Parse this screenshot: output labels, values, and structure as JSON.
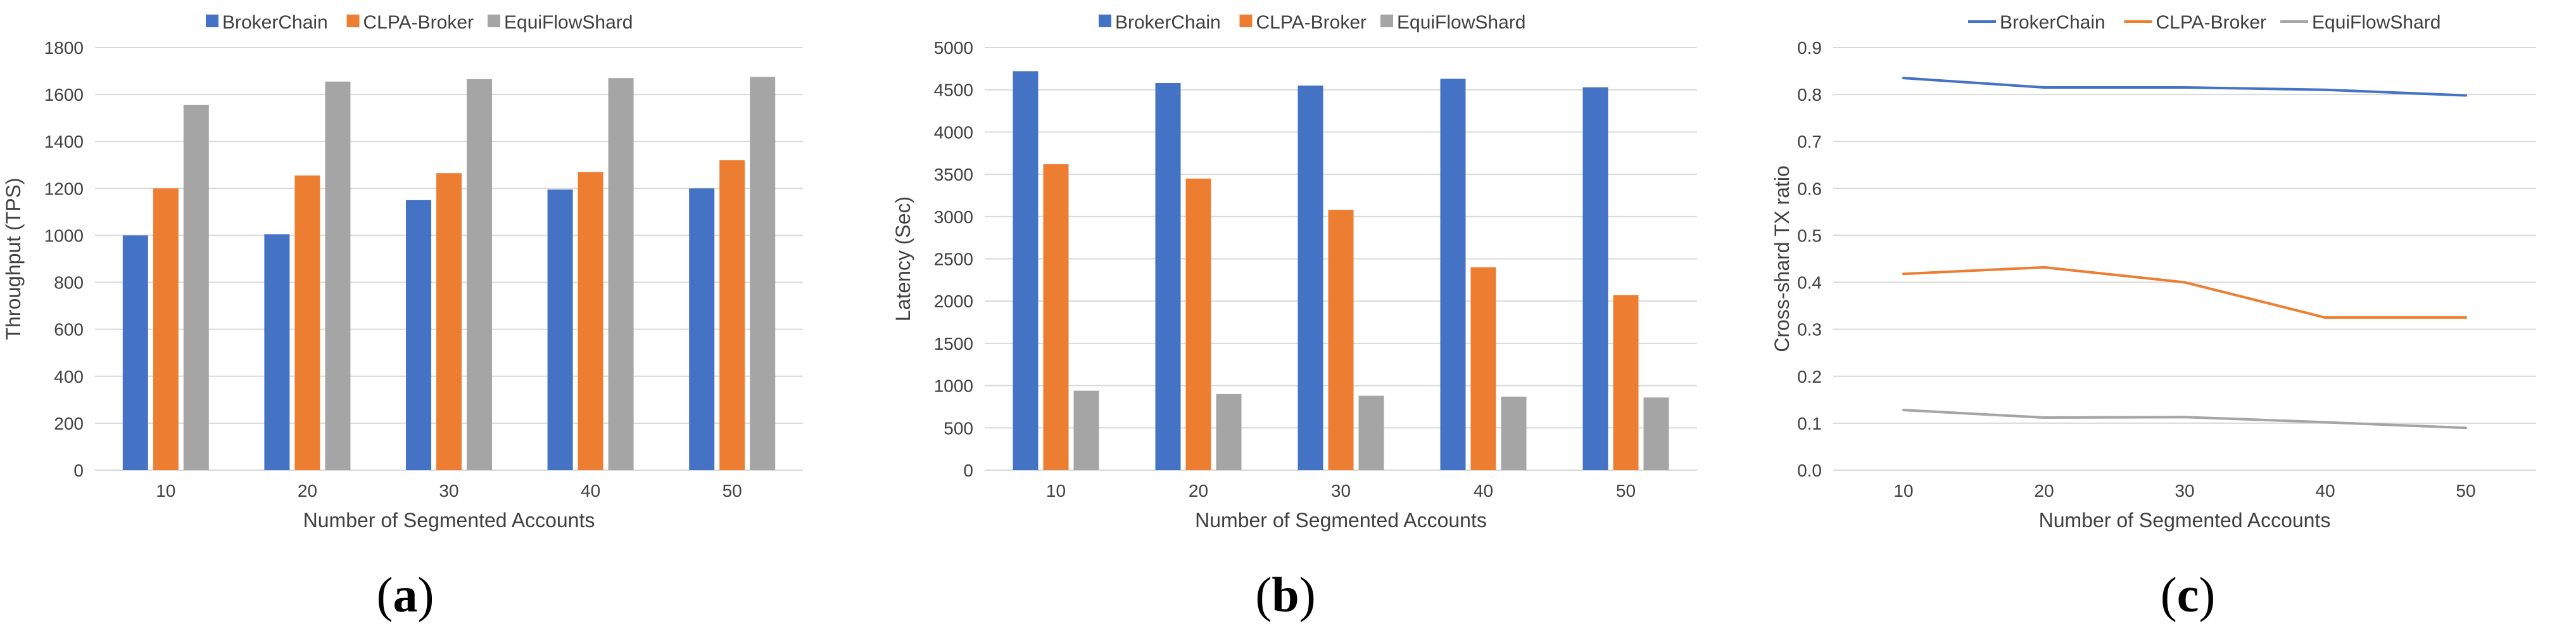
{
  "colors": {
    "BrokerChain": "#4472C4",
    "CLPA-Broker": "#ED7D31",
    "EquiFlowShard": "#A5A5A5"
  },
  "chart_data": [
    {
      "type": "bar",
      "panel": "(a)",
      "panel_letter": "a",
      "title": "",
      "xlabel": "Number of Segmented Accounts",
      "ylabel": "Throughput (TPS)",
      "categories": [
        "10",
        "20",
        "30",
        "40",
        "50"
      ],
      "ylim": [
        0,
        1800
      ],
      "yticks": [
        0,
        200,
        400,
        600,
        800,
        1000,
        1200,
        1400,
        1600,
        1800
      ],
      "grid": true,
      "legend_position": "top",
      "series": [
        {
          "name": "BrokerChain",
          "values": [
            1000,
            1005,
            1150,
            1195,
            1200
          ]
        },
        {
          "name": "CLPA-Broker",
          "values": [
            1200,
            1255,
            1265,
            1270,
            1320
          ]
        },
        {
          "name": "EquiFlowShard",
          "values": [
            1555,
            1655,
            1665,
            1670,
            1675
          ]
        }
      ]
    },
    {
      "type": "bar",
      "panel": "(b)",
      "panel_letter": "b",
      "title": "",
      "xlabel": "Number of Segmented Accounts",
      "ylabel": "Latency (Sec)",
      "categories": [
        "10",
        "20",
        "30",
        "40",
        "50"
      ],
      "ylim": [
        0,
        5000
      ],
      "yticks": [
        0,
        500,
        1000,
        1500,
        2000,
        2500,
        3000,
        3500,
        4000,
        4500,
        5000
      ],
      "grid": true,
      "legend_position": "top",
      "series": [
        {
          "name": "BrokerChain",
          "values": [
            4720,
            4580,
            4550,
            4630,
            4530
          ]
        },
        {
          "name": "CLPA-Broker",
          "values": [
            3620,
            3450,
            3080,
            2400,
            2070
          ]
        },
        {
          "name": "EquiFlowShard",
          "values": [
            940,
            900,
            880,
            870,
            860
          ]
        }
      ]
    },
    {
      "type": "line",
      "panel": "(c)",
      "panel_letter": "c",
      "title": "",
      "xlabel": "Number of Segmented Accounts",
      "ylabel": "Cross-shard TX ratio",
      "categories": [
        "10",
        "20",
        "30",
        "40",
        "50"
      ],
      "ylim": [
        0,
        0.9
      ],
      "yticks": [
        0,
        0.1,
        0.2,
        0.3,
        0.4,
        0.5,
        0.6,
        0.7,
        0.8,
        0.9
      ],
      "grid": true,
      "legend_position": "top",
      "series": [
        {
          "name": "BrokerChain",
          "values": [
            0.835,
            0.815,
            0.815,
            0.81,
            0.798
          ]
        },
        {
          "name": "CLPA-Broker",
          "values": [
            0.418,
            0.432,
            0.4,
            0.325,
            0.325
          ]
        },
        {
          "name": "EquiFlowShard",
          "values": [
            0.128,
            0.112,
            0.113,
            0.102,
            0.09
          ]
        }
      ]
    }
  ]
}
